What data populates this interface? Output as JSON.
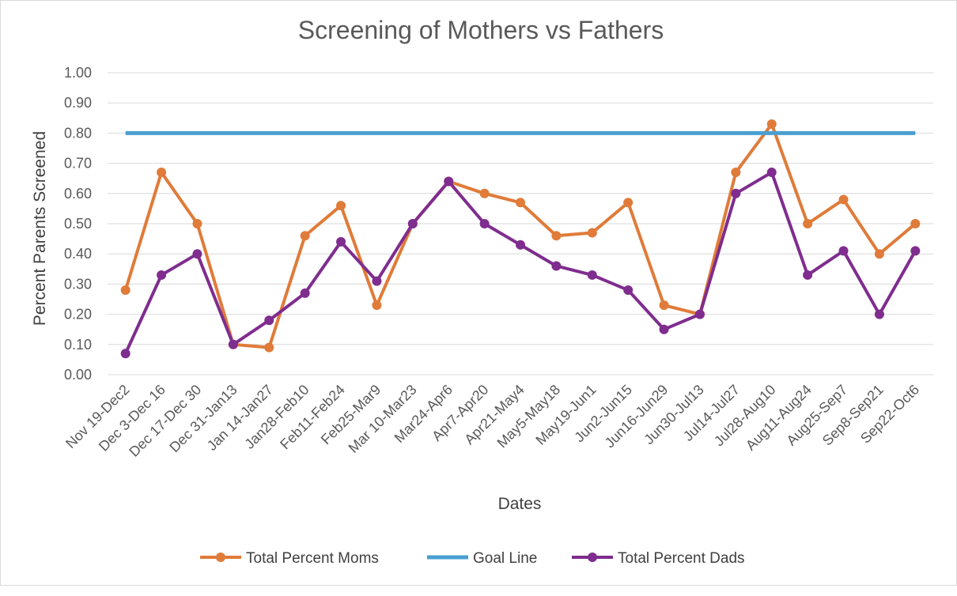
{
  "chart_data": {
    "type": "line",
    "title": "Screening of Mothers vs Fathers",
    "xlabel": "Dates",
    "ylabel": "Percent Parents Screened",
    "ylim": [
      0,
      1
    ],
    "yticks": [
      "0.00",
      "0.10",
      "0.20",
      "0.30",
      "0.40",
      "0.50",
      "0.60",
      "0.70",
      "0.80",
      "0.90",
      "1.00"
    ],
    "grid": true,
    "legend_position": "bottom",
    "categories": [
      "Nov 19-Dec2",
      "Dec 3-Dec 16",
      "Dec 17-Dec 30",
      "Dec 31-Jan13",
      "Jan 14-Jan27",
      "Jan28-Feb10",
      "Feb11-Feb24",
      "Feb25-Mar9",
      "Mar 10-Mar23",
      "Mar24-Apr6",
      "Apr7-Apr20",
      "Apr21-May4",
      "May5-May18",
      "May19-Jun1",
      "Jun2-Jun15",
      "Jun16-Jun29",
      "Jun30-Jul13",
      "Jul14-Jul27",
      "Jul28-Aug10",
      "Aug11-Aug24",
      "Aug25-Sep7",
      "Sep8-Sep21",
      "Sep22-Oct6"
    ],
    "series": [
      {
        "name": "Total Percent Moms",
        "color": "#e07b39",
        "marker": true,
        "values": [
          0.28,
          0.67,
          0.5,
          0.1,
          0.09,
          0.46,
          0.56,
          0.23,
          0.5,
          0.64,
          0.6,
          0.57,
          0.46,
          0.47,
          0.57,
          0.23,
          0.2,
          0.67,
          0.83,
          0.5,
          0.58,
          0.4,
          0.5
        ]
      },
      {
        "name": "Goal Line",
        "color": "#4a9fd0",
        "marker": false,
        "values": [
          0.8,
          0.8,
          0.8,
          0.8,
          0.8,
          0.8,
          0.8,
          0.8,
          0.8,
          0.8,
          0.8,
          0.8,
          0.8,
          0.8,
          0.8,
          0.8,
          0.8,
          0.8,
          0.8,
          0.8,
          0.8,
          0.8,
          0.8
        ]
      },
      {
        "name": "Total Percent Dads",
        "color": "#7f2d8e",
        "marker": true,
        "values": [
          0.07,
          0.33,
          0.4,
          0.1,
          0.18,
          0.27,
          0.44,
          0.31,
          0.5,
          0.64,
          0.5,
          0.43,
          0.36,
          0.33,
          0.28,
          0.15,
          0.2,
          0.6,
          0.67,
          0.33,
          0.41,
          0.2,
          0.41
        ]
      }
    ]
  }
}
